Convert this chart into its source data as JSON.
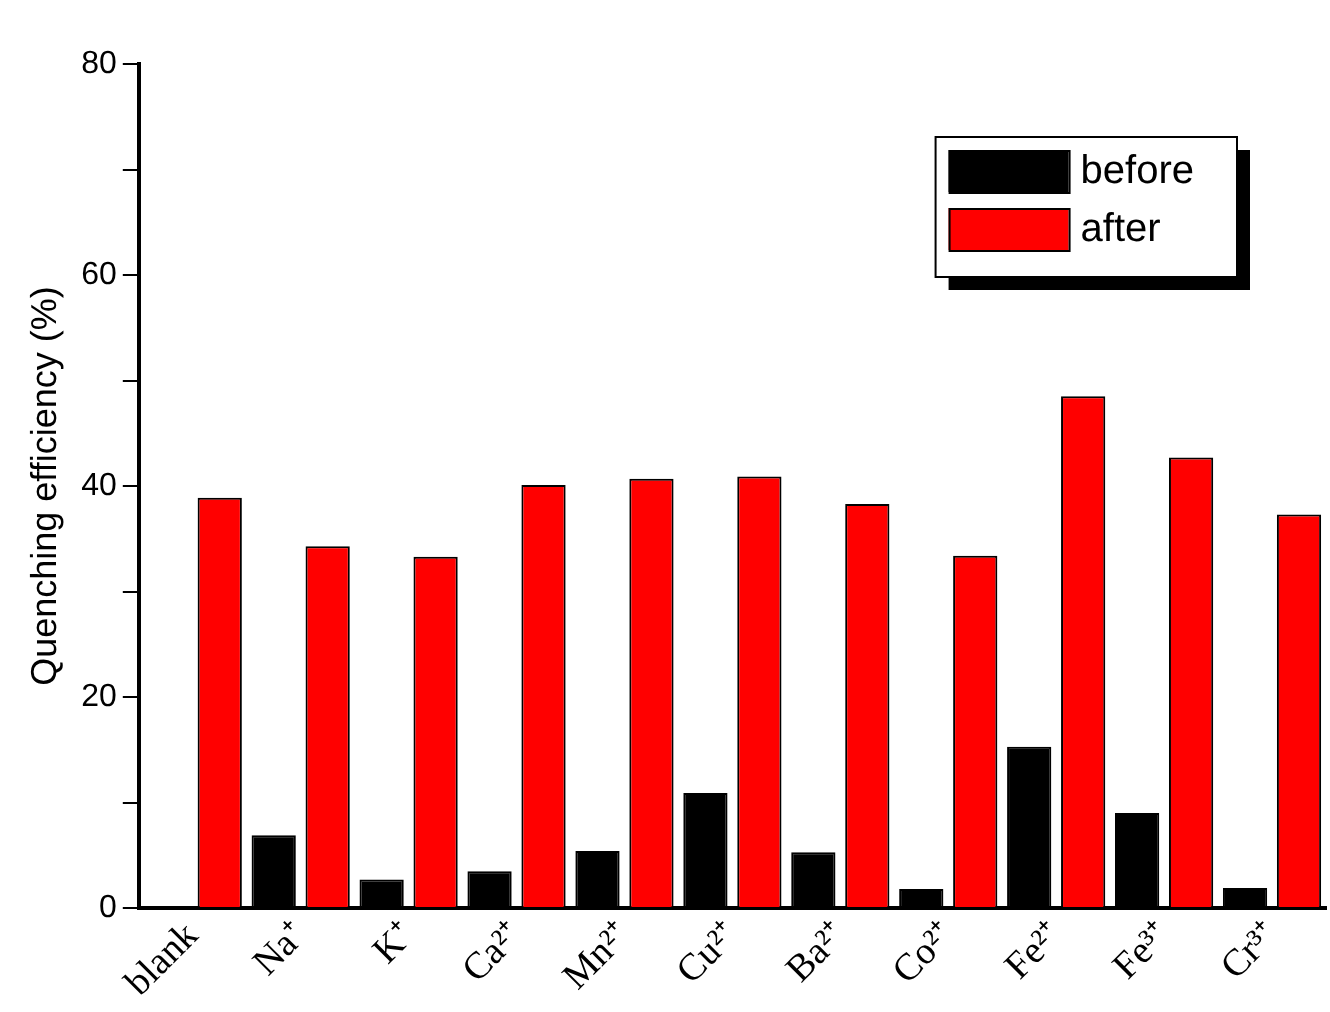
{
  "chart_data": {
    "type": "bar",
    "ylabel": "Quenching efficiency (%)",
    "categories": [
      "blank",
      "Na⁺",
      "K⁺",
      "Ca²⁺",
      "Mn²⁺",
      "Cu²⁺",
      "Ba²⁺",
      "Co²⁺",
      "Fe²⁺",
      "Fe³⁺",
      "Cr³⁺"
    ],
    "series": [
      {
        "name": "before",
        "color": "#000000",
        "values": [
          0,
          6.9,
          2.7,
          3.5,
          5.4,
          10.9,
          5.3,
          1.8,
          15.3,
          9.0,
          1.9
        ]
      },
      {
        "name": "after",
        "color": "#ff0000",
        "values": [
          38.9,
          34.3,
          33.3,
          40.1,
          40.7,
          40.9,
          38.3,
          33.4,
          48.5,
          42.7,
          37.3
        ]
      }
    ],
    "ylim": [
      0,
      80
    ],
    "yticks": [
      0,
      {
        "value": 10,
        "label": null
      },
      20,
      {
        "value": 30,
        "label": null
      },
      40,
      {
        "value": 50,
        "label": null
      },
      60,
      {
        "value": 70,
        "label": null
      },
      80
    ],
    "grid": false,
    "legend": "top right"
  }
}
